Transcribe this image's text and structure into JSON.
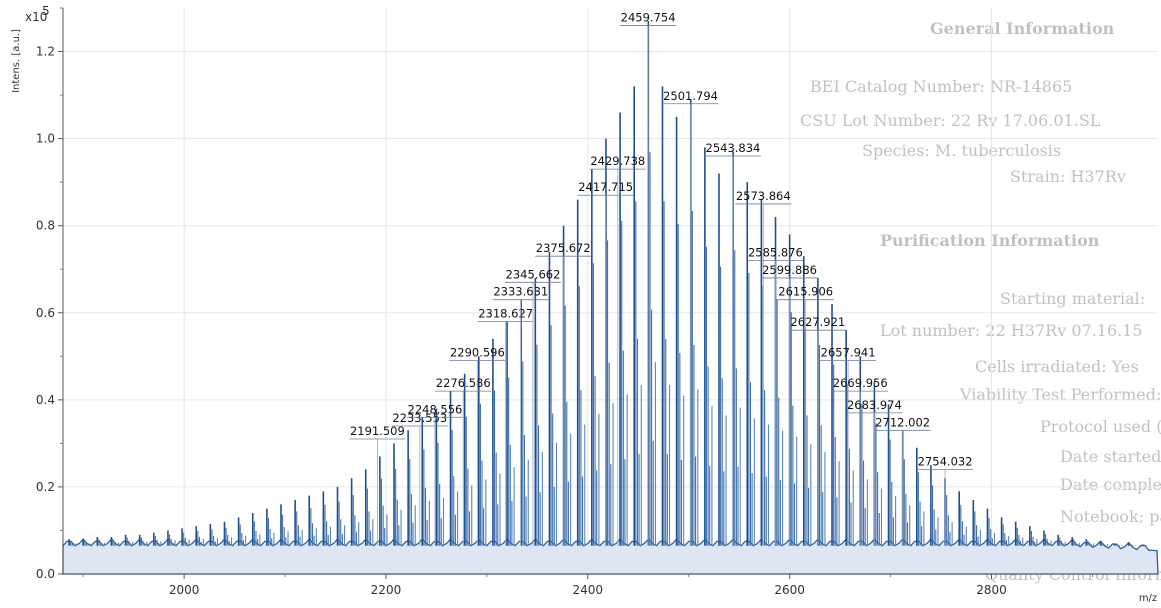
{
  "chart_data": {
    "type": "line",
    "title": "",
    "xlabel": "m/z",
    "ylabel": "Intens. [a.u.]",
    "y_multiplier": "x10",
    "y_multiplier_exp": "5",
    "xlim": [
      1880,
      2965
    ],
    "ylim": [
      0,
      1.3
    ],
    "x_ticks": [
      2000,
      2200,
      2400,
      2600,
      2800
    ],
    "y_ticks": [
      0.0,
      0.2,
      0.4,
      0.6,
      0.8,
      1.0,
      1.2
    ],
    "grid": true,
    "baseline": 0.065,
    "series": [
      {
        "name": "",
        "color": "#2f5e9b",
        "spacing": 14,
        "x": [
          1886,
          1900,
          1914,
          1928,
          1942,
          1956,
          1970,
          1984,
          1998,
          2012,
          2026,
          2040,
          2054,
          2068,
          2082,
          2096,
          2110,
          2124,
          2138,
          2152,
          2166,
          2180,
          2194,
          2208,
          2222,
          2236,
          2250,
          2264,
          2278,
          2292,
          2306,
          2320,
          2334,
          2348,
          2362,
          2376,
          2390,
          2404,
          2418,
          2432,
          2446,
          2460,
          2474,
          2488,
          2502,
          2516,
          2530,
          2544,
          2558,
          2572,
          2586,
          2600,
          2614,
          2628,
          2642,
          2656,
          2670,
          2684,
          2698,
          2712,
          2726,
          2740,
          2754,
          2768,
          2782,
          2796,
          2810,
          2824,
          2838,
          2852,
          2866,
          2880,
          2894,
          2908,
          2922,
          2936,
          2950
        ],
        "y": [
          0.08,
          0.08,
          0.085,
          0.085,
          0.09,
          0.09,
          0.095,
          0.1,
          0.105,
          0.11,
          0.115,
          0.12,
          0.13,
          0.14,
          0.15,
          0.16,
          0.17,
          0.18,
          0.19,
          0.2,
          0.22,
          0.24,
          0.27,
          0.3,
          0.33,
          0.36,
          0.38,
          0.42,
          0.46,
          0.5,
          0.54,
          0.58,
          0.63,
          0.68,
          0.74,
          0.8,
          0.86,
          0.93,
          1.0,
          1.06,
          1.12,
          1.27,
          1.12,
          1.05,
          1.09,
          0.98,
          0.92,
          0.97,
          0.9,
          0.86,
          0.82,
          0.78,
          0.73,
          0.68,
          0.62,
          0.56,
          0.5,
          0.44,
          0.39,
          0.33,
          0.29,
          0.25,
          0.22,
          0.19,
          0.17,
          0.15,
          0.13,
          0.12,
          0.11,
          0.1,
          0.09,
          0.085,
          0.08,
          0.075,
          0.07,
          0.07,
          0.068
        ]
      }
    ],
    "annotations": [
      {
        "label": "2191.509",
        "x": 2191.509,
        "y": 0.31
      },
      {
        "label": "2233.553",
        "x": 2233.553,
        "y": 0.34
      },
      {
        "label": "2248.556",
        "x": 2248.556,
        "y": 0.36
      },
      {
        "label": "2276.586",
        "x": 2276.586,
        "y": 0.42
      },
      {
        "label": "2290.596",
        "x": 2290.596,
        "y": 0.49
      },
      {
        "label": "2318.627",
        "x": 2318.627,
        "y": 0.58
      },
      {
        "label": "2333.631",
        "x": 2333.631,
        "y": 0.63
      },
      {
        "label": "2345.662",
        "x": 2345.662,
        "y": 0.67
      },
      {
        "label": "2375.672",
        "x": 2375.672,
        "y": 0.73
      },
      {
        "label": "2417.715",
        "x": 2417.715,
        "y": 0.87
      },
      {
        "label": "2429.738",
        "x": 2429.738,
        "y": 0.93
      },
      {
        "label": "2459.754",
        "x": 2459.754,
        "y": 1.26
      },
      {
        "label": "2501.794",
        "x": 2501.794,
        "y": 1.08
      },
      {
        "label": "2543.834",
        "x": 2543.834,
        "y": 0.96
      },
      {
        "label": "2573.864",
        "x": 2573.864,
        "y": 0.85
      },
      {
        "label": "2585.876",
        "x": 2585.876,
        "y": 0.72
      },
      {
        "label": "2599.886",
        "x": 2599.886,
        "y": 0.68
      },
      {
        "label": "2615.906",
        "x": 2615.906,
        "y": 0.63
      },
      {
        "label": "2627.921",
        "x": 2627.921,
        "y": 0.56
      },
      {
        "label": "2657.941",
        "x": 2657.941,
        "y": 0.49
      },
      {
        "label": "2669.956",
        "x": 2669.956,
        "y": 0.42
      },
      {
        "label": "2683.974",
        "x": 2683.974,
        "y": 0.37
      },
      {
        "label": "2712.002",
        "x": 2712.002,
        "y": 0.33
      },
      {
        "label": "2754.032",
        "x": 2754.032,
        "y": 0.24
      }
    ]
  },
  "watermark": {
    "lines": [
      "General Information",
      "BEI Catalog Number: NR-14865",
      "CSU Lot Number: 22 Rv 17.06.01.SL",
      "Species: M. tuberculosis",
      "Strain: H37Rv",
      "Purification Information",
      "Starting material:",
      "Lot number: 22 H37Rv 07.16.15",
      "Cells irradiated: Yes",
      "Viability Test Performed: Yes",
      "Protocol used (SOP #):",
      "Date started:",
      "Date completed:",
      "Notebook; page(s):",
      "Quality Control Information:"
    ]
  }
}
